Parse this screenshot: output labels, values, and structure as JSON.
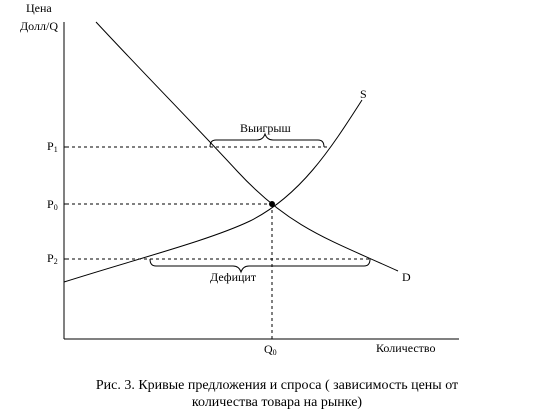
{
  "axes": {
    "y_label_line1": "Цена",
    "y_label_line2": "Долл/Q",
    "x_label": "Количество"
  },
  "prices": {
    "p1": {
      "base": "P",
      "sub": "1"
    },
    "p0": {
      "base": "P",
      "sub": "0"
    },
    "p2": {
      "base": "P",
      "sub": "2"
    }
  },
  "quantity": {
    "q0": {
      "base": "Q",
      "sub": "0"
    }
  },
  "curves": {
    "supply": "S",
    "demand": "D"
  },
  "regions": {
    "surplus": "Выигрыш",
    "deficit": "Дефицит"
  },
  "caption": {
    "line1": "Рис. 3. Кривые предложения и спроса ( зависимость цены от",
    "line2": "количества товара на рынке)"
  },
  "colors": {
    "ink": "#000000",
    "background": "#ffffff"
  }
}
